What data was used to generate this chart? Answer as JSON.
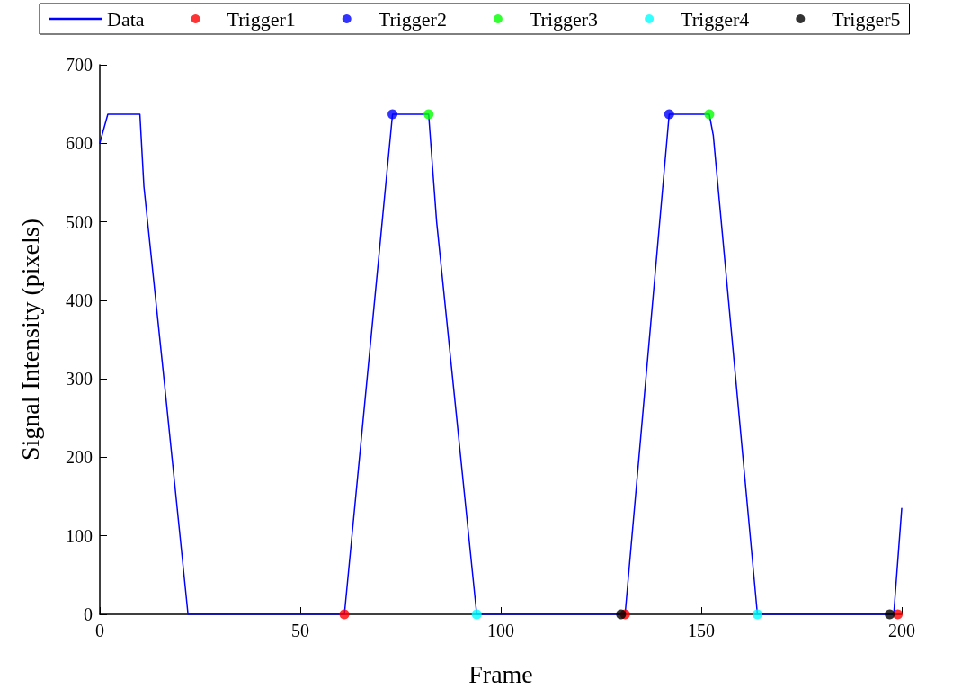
{
  "chart_data": {
    "type": "line",
    "xlabel": "Frame",
    "ylabel": "Signal Intensity (pixels)",
    "xlim": [
      0,
      200
    ],
    "xticks": [
      0,
      50,
      100,
      150,
      200
    ],
    "ylim": [
      0,
      700
    ],
    "yticks": [
      0,
      100,
      200,
      300,
      400,
      500,
      600,
      700
    ],
    "grid": false,
    "legend": "top",
    "series": [
      {
        "name": "Data",
        "marker": "none",
        "line_style": "solid",
        "color": "#0000ff",
        "x": [
          0,
          2,
          10,
          11,
          16,
          22,
          61,
          73,
          82,
          84,
          94,
          131,
          142,
          152,
          153,
          164,
          198,
          200
        ],
        "values": [
          600,
          637,
          637,
          545,
          300,
          0,
          0,
          637,
          637,
          500,
          0,
          0,
          637,
          637,
          610,
          0,
          0,
          135
        ]
      },
      {
        "name": "Trigger1",
        "type": "scatter",
        "marker": "circle",
        "color": "#ff0000",
        "x": [
          61,
          131,
          199
        ],
        "values": [
          0,
          0,
          0
        ]
      },
      {
        "name": "Trigger2",
        "type": "scatter",
        "marker": "circle",
        "color": "#0000ff",
        "x": [
          73,
          142
        ],
        "values": [
          637,
          637
        ]
      },
      {
        "name": "Trigger3",
        "type": "scatter",
        "marker": "circle",
        "color": "#00ff00",
        "x": [
          82,
          152
        ],
        "values": [
          637,
          637
        ]
      },
      {
        "name": "Trigger4",
        "type": "scatter",
        "marker": "circle",
        "color": "#00ffff",
        "x": [
          94,
          164
        ],
        "values": [
          0,
          0
        ]
      },
      {
        "name": "Trigger5",
        "type": "scatter",
        "marker": "circle",
        "color": "#000000",
        "x": [
          130,
          197
        ],
        "values": [
          0,
          0
        ]
      }
    ]
  }
}
